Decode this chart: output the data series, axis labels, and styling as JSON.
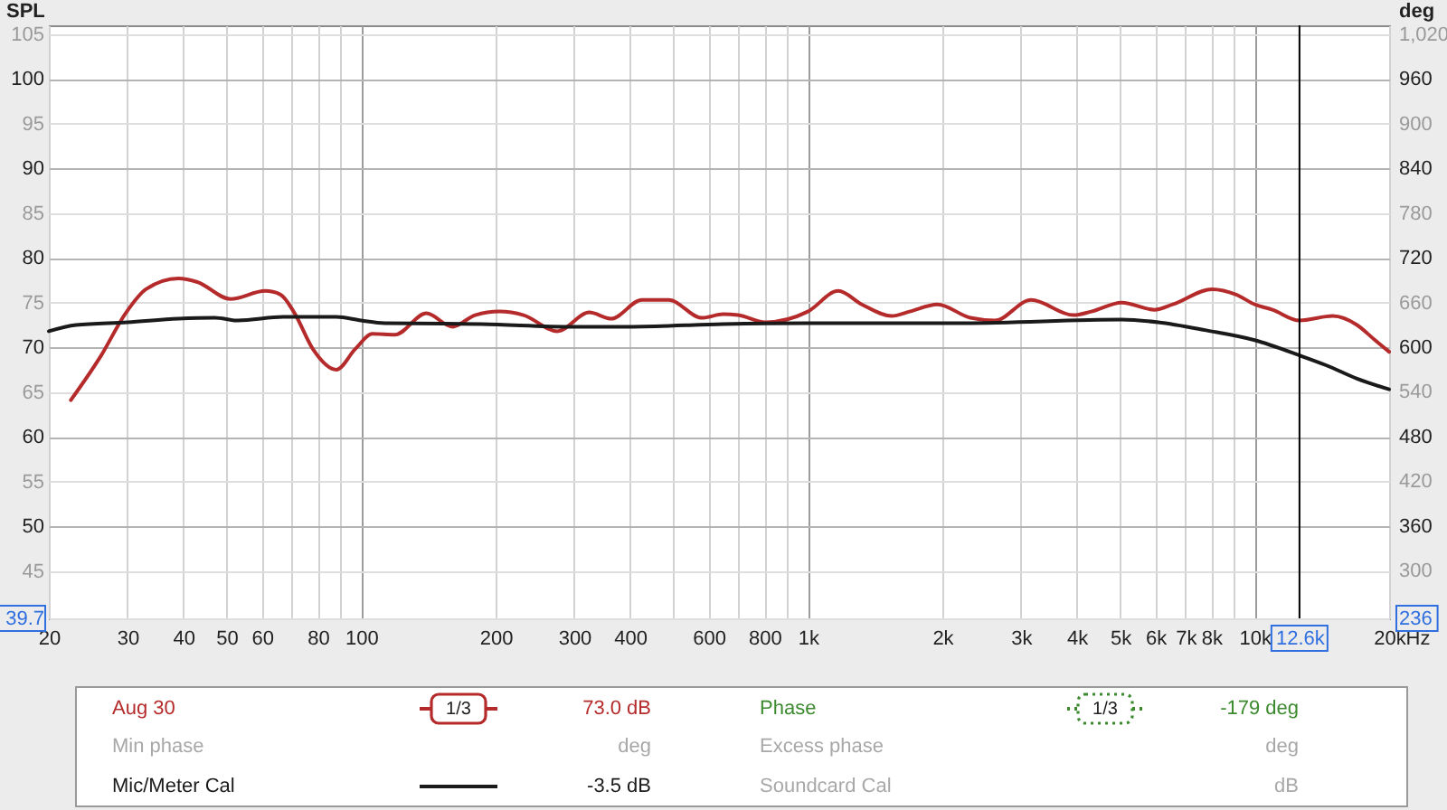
{
  "chart_data": {
    "type": "line",
    "ylabel": "SPL",
    "y2label": "deg",
    "xlabel": "Hz",
    "log": "x",
    "grid": true,
    "legend": "bottom",
    "xlim": [
      20,
      20000
    ],
    "xticks": [
      20,
      30,
      40,
      50,
      60,
      {
        "value": 70,
        "label": null
      },
      80,
      {
        "value": 90,
        "label": null
      },
      100,
      200,
      300,
      400,
      {
        "value": 500,
        "label": null
      },
      600,
      {
        "value": 700,
        "label": null
      },
      800,
      {
        "value": 900,
        "label": null
      },
      {
        "value": 1000,
        "label": "1k"
      },
      {
        "value": 2000,
        "label": "2k"
      },
      {
        "value": 3000,
        "label": "3k"
      },
      {
        "value": 4000,
        "label": "4k"
      },
      {
        "value": 5000,
        "label": "5k"
      },
      {
        "value": 6000,
        "label": "6k"
      },
      {
        "value": 7000,
        "label": "7k"
      },
      {
        "value": 8000,
        "label": "8k"
      },
      {
        "value": 9000,
        "label": null
      },
      {
        "value": 10000,
        "label": "10k"
      },
      {
        "value": 12600,
        "label": "12.6k"
      },
      {
        "value": 20000,
        "label": "20k"
      }
    ],
    "ylim": [
      39.7,
      106
    ],
    "yticks": [
      {
        "value": 39.7,
        "label": "39.7"
      },
      45,
      50,
      55,
      60,
      65,
      70,
      75,
      80,
      85,
      90,
      95,
      100,
      105
    ],
    "y2lim": [
      236,
      1032
    ],
    "y2ticks": [
      {
        "value": 236,
        "label": "236"
      },
      300,
      360,
      420,
      480,
      540,
      600,
      660,
      720,
      780,
      840,
      900,
      960,
      {
        "value": 1020,
        "label": "1,020"
      }
    ],
    "series": [
      {
        "name": "Aug 30",
        "color": "#b52b2b",
        "line_style": "solid",
        "x": [
          22.4,
          26.2,
          29.7,
          33,
          39,
          43,
          51,
          61,
          66,
          71,
          78,
          88,
          97,
          106,
          119,
          140,
          160,
          180,
          204,
          231,
          275,
          324,
          363,
          425,
          488,
          579,
          646,
          698,
          803,
          1000,
          1170,
          1320,
          1540,
          1690,
          1950,
          2310,
          2620,
          3160,
          3930,
          4310,
          5040,
          5970,
          6560,
          8030,
          9090,
          10000,
          10960,
          12600,
          14960,
          16950,
          18600,
          20000
        ],
        "values": [
          64.1,
          69.1,
          73.8,
          76.5,
          77.7,
          77.3,
          75.4,
          76.3,
          75.9,
          73.8,
          69.8,
          67.5,
          69.8,
          71.5,
          71.4,
          73.8,
          72.3,
          73.6,
          74.0,
          73.6,
          71.8,
          73.9,
          73.2,
          75.3,
          75.3,
          73.3,
          73.7,
          73.6,
          72.8,
          74.0,
          76.3,
          74.8,
          73.5,
          74.0,
          74.8,
          73.3,
          73.0,
          75.3,
          73.6,
          74.0,
          75.0,
          74.2,
          74.8,
          76.5,
          75.9,
          74.8,
          74.2,
          73.0,
          73.5,
          72.5,
          70.8,
          69.5
        ]
      },
      {
        "name": "Phase",
        "color": "#3c8a2e",
        "axis": "y2",
        "line_style": "dotted"
      },
      {
        "name": "Mic/Meter Cal",
        "color": "#1a1a1a",
        "line_style": "solid",
        "x": [
          20,
          23,
          30,
          39,
          47,
          53,
          67,
          88,
          100,
          113,
          186,
          298,
          406,
          646,
          1000,
          2240,
          5040,
          6080,
          7790,
          10000,
          12600,
          14450,
          16950,
          20000
        ],
        "values": [
          71.8,
          72.5,
          72.8,
          73.2,
          73.3,
          73.0,
          73.4,
          73.4,
          73.0,
          72.7,
          72.6,
          72.3,
          72.3,
          72.6,
          72.7,
          72.7,
          73.1,
          72.8,
          71.9,
          70.8,
          69.1,
          68.0,
          66.5,
          65.3
        ]
      }
    ],
    "ref_lines": [
      {
        "axis": "x",
        "value": 12600,
        "color": "#000000"
      }
    ],
    "annotations": [
      "1/3",
      "73.0 dB",
      "1/3",
      "-179 deg",
      "Min phase",
      "deg",
      "Excess phase",
      "deg",
      "-3.5 dB",
      "Soundcard Cal",
      "dB"
    ]
  }
}
